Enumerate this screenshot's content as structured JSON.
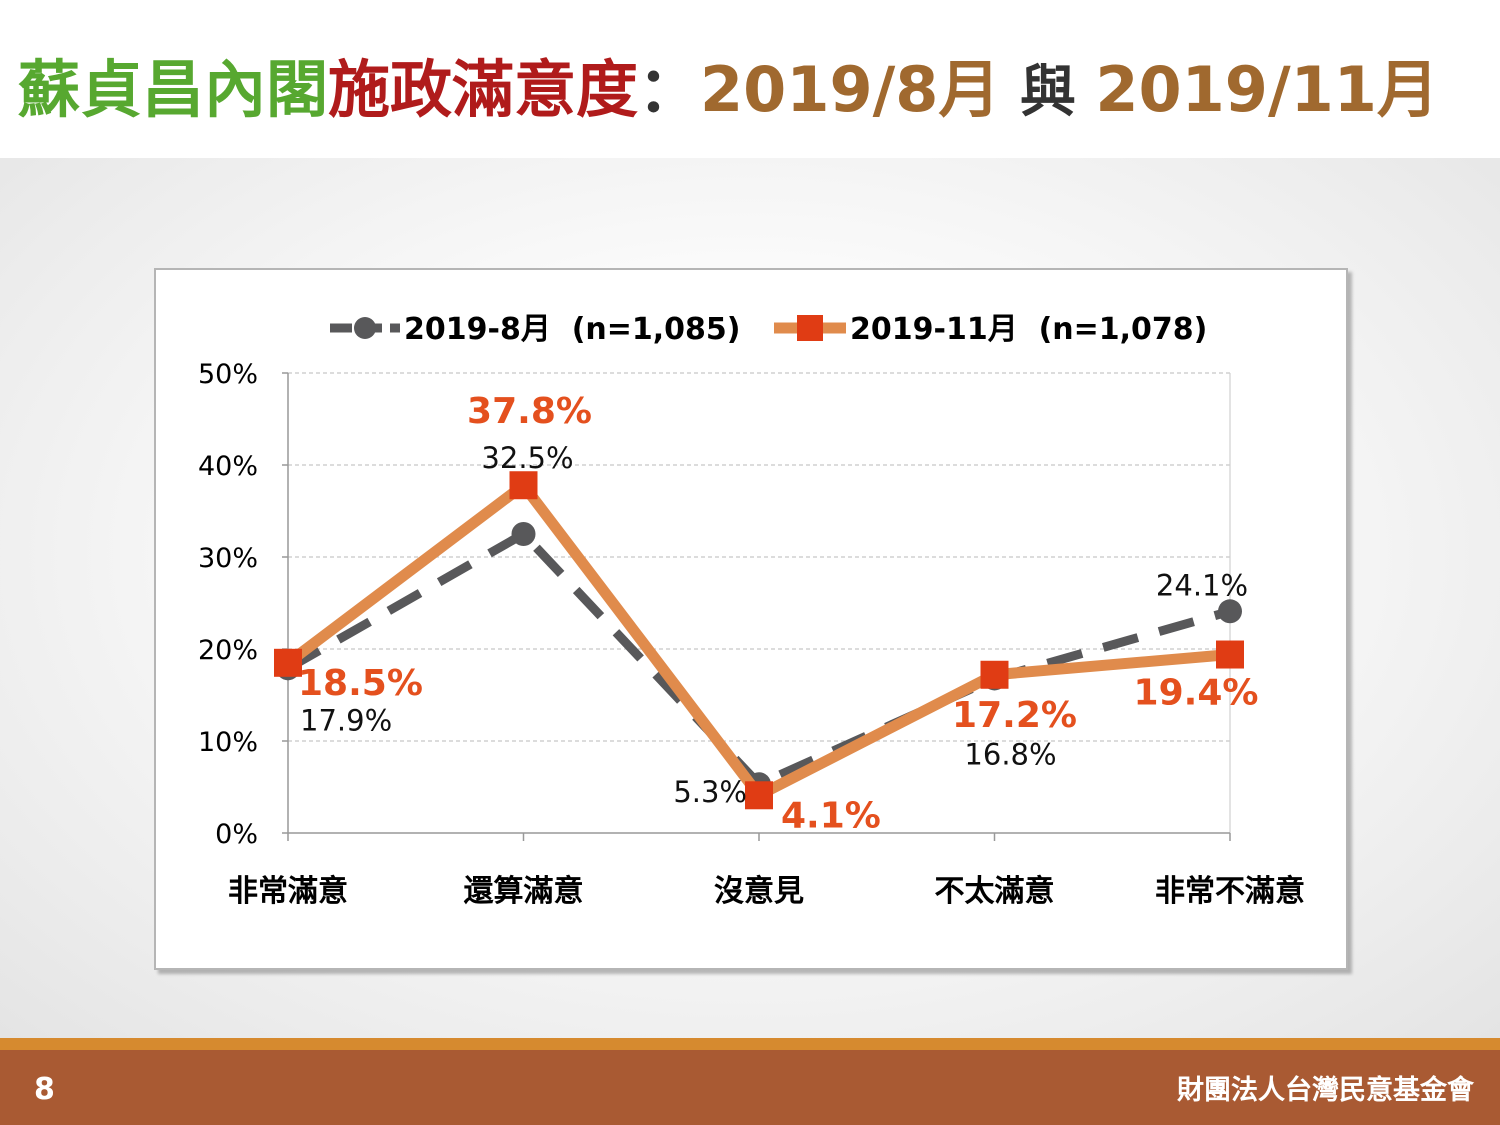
{
  "slide": {
    "title_parts": [
      "蘇貞昌內閣",
      "施政滿意度",
      "：",
      "2019/8月",
      " 與 ",
      "2019/11月"
    ],
    "page_number": "8",
    "organization": "財團法人台灣民意基金會",
    "colors": {
      "title_green": "#57a830",
      "title_red": "#b01b1b",
      "title_brown": "#a0692f",
      "footer": "#a95a33",
      "footer_line": "#d68a2f"
    }
  },
  "chart_data": {
    "type": "line",
    "categories": [
      "非常滿意",
      "還算滿意",
      "沒意見",
      "不太滿意",
      "非常不滿意"
    ],
    "ylim": [
      0,
      50
    ],
    "yticks": [
      0,
      10,
      20,
      30,
      40,
      50
    ],
    "ytick_labels": [
      "0%",
      "10%",
      "20%",
      "30%",
      "40%",
      "50%"
    ],
    "grid": true,
    "legend_position": "top",
    "series": [
      {
        "name": "2019-8月  (n=1,085)",
        "values": [
          17.9,
          32.5,
          5.3,
          16.8,
          24.1
        ],
        "labels": [
          "17.9%",
          "32.5%",
          "5.3%",
          "16.8%",
          "24.1%"
        ],
        "color": "#58585a",
        "style": "dashed",
        "marker": "circle"
      },
      {
        "name": "2019-11月  (n=1,078)",
        "values": [
          18.5,
          37.8,
          4.1,
          17.2,
          19.4
        ],
        "labels": [
          "18.5%",
          "37.8%",
          "4.1%",
          "17.2%",
          "19.4%"
        ],
        "color": "#e08b4c",
        "marker_color": "#e03c14",
        "style": "solid",
        "marker": "square"
      }
    ]
  }
}
